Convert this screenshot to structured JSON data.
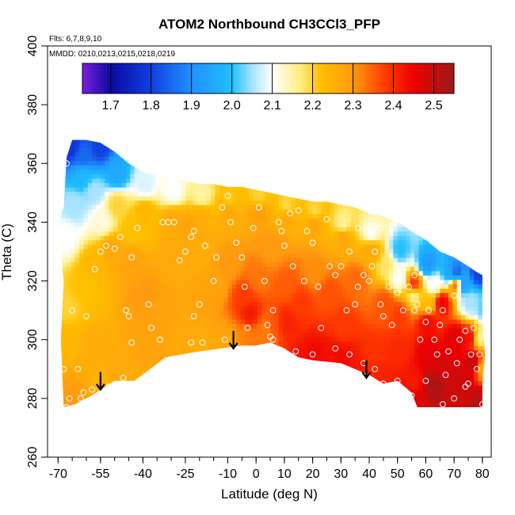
{
  "chart_data": {
    "type": "heatmap",
    "title": "ATOM2 Northbound CH3CCl3_PFP",
    "flights_note": "Flts: 6,7,8,9,10",
    "dates_note": "MMDD: 0210,0213,0215,0218,0219",
    "xlabel": "Latitude (deg N)",
    "ylabel": "Theta (C)",
    "xlim": [
      -70,
      80
    ],
    "ylim": [
      260,
      400
    ],
    "x_ticks": [
      -70,
      -55,
      -40,
      -25,
      -10,
      0,
      10,
      20,
      30,
      40,
      50,
      60,
      70,
      80
    ],
    "x_tick_labels": [
      "-70",
      "-55",
      "-40",
      "-25",
      "-10",
      "0",
      "10",
      "20",
      "30",
      "40",
      "50",
      "60",
      "70",
      "80"
    ],
    "x_minor_step": 5,
    "y_ticks": [
      260,
      280,
      300,
      320,
      340,
      360,
      380,
      400
    ],
    "y_tick_labels": [
      "260",
      "280",
      "300",
      "320",
      "340",
      "360",
      "380",
      "400"
    ],
    "colorbar": {
      "ticks": [
        1.7,
        1.8,
        1.9,
        2.0,
        2.1,
        2.2,
        2.3,
        2.4,
        2.5
      ],
      "tick_labels": [
        "1.7",
        "1.8",
        "1.9",
        "2.0",
        "2.1",
        "2.2",
        "2.3",
        "2.4",
        "2.5"
      ],
      "range": [
        1.63,
        2.55
      ],
      "stops": [
        {
          "v": 1.63,
          "c": "#7b1fe0"
        },
        {
          "v": 1.7,
          "c": "#0a0aa0"
        },
        {
          "v": 1.8,
          "c": "#1040e0"
        },
        {
          "v": 1.9,
          "c": "#2090ff"
        },
        {
          "v": 2.0,
          "c": "#20c0ff"
        },
        {
          "v": 2.05,
          "c": "#a8e4ff"
        },
        {
          "v": 2.1,
          "c": "#ffffff"
        },
        {
          "v": 2.17,
          "c": "#ffee80"
        },
        {
          "v": 2.22,
          "c": "#ffc000"
        },
        {
          "v": 2.3,
          "c": "#ff9a10"
        },
        {
          "v": 2.38,
          "c": "#ff3a00"
        },
        {
          "v": 2.45,
          "c": "#ee0000"
        },
        {
          "v": 2.55,
          "c": "#9b1a1a"
        }
      ]
    },
    "surface": [
      [
        [
          -68,
          300,
          2.24
        ],
        [
          -66,
          278,
          2.3
        ],
        [
          -62,
          277,
          2.28
        ],
        [
          -58,
          296,
          2.26
        ],
        [
          -55,
          285,
          2.25
        ],
        [
          -50,
          286,
          2.27
        ],
        [
          -45,
          285,
          2.26
        ],
        [
          -40,
          297,
          2.28
        ],
        [
          -35,
          293,
          2.28
        ],
        [
          -28,
          298,
          2.27
        ],
        [
          -20,
          296,
          2.26
        ],
        [
          -15,
          297,
          2.27
        ],
        [
          -10,
          299,
          2.28
        ],
        [
          -5,
          301,
          2.32
        ],
        [
          0,
          300,
          2.33
        ],
        [
          3,
          303,
          2.32
        ],
        [
          5,
          304,
          2.36
        ],
        [
          10,
          305,
          2.41
        ],
        [
          15,
          292,
          2.43
        ],
        [
          20,
          294,
          2.44
        ],
        [
          25,
          293,
          2.43
        ],
        [
          30,
          292,
          2.44
        ],
        [
          35,
          290,
          2.42
        ],
        [
          40,
          295,
          2.39
        ],
        [
          45,
          285,
          2.41
        ],
        [
          50,
          297,
          2.4
        ],
        [
          55,
          285,
          2.42
        ],
        [
          60,
          295,
          2.46
        ],
        [
          65,
          290,
          2.48
        ],
        [
          70,
          300,
          2.47
        ],
        [
          72,
          284,
          2.49
        ],
        [
          76,
          292,
          2.5
        ],
        [
          79,
          278,
          2.52
        ],
        [
          62,
          284,
          2.53
        ],
        [
          55,
          278,
          2.47
        ]
      ],
      [
        [
          -68,
          310,
          2.2
        ],
        [
          -62,
          318,
          2.22
        ],
        [
          -58,
          325,
          2.24
        ],
        [
          -52,
          330,
          2.27
        ],
        [
          -45,
          325,
          2.28
        ],
        [
          -40,
          315,
          2.3
        ],
        [
          -35,
          308,
          2.28
        ],
        [
          -30,
          325,
          2.27
        ],
        [
          -25,
          338,
          2.28
        ],
        [
          -20,
          330,
          2.26
        ],
        [
          -15,
          318,
          2.28
        ],
        [
          -10,
          325,
          2.3
        ],
        [
          -5,
          314,
          2.38
        ],
        [
          -3,
          308,
          2.42
        ],
        [
          0,
          320,
          2.33
        ],
        [
          5,
          330,
          2.3
        ],
        [
          10,
          318,
          2.35
        ],
        [
          15,
          312,
          2.38
        ],
        [
          20,
          322,
          2.31
        ],
        [
          25,
          315,
          2.36
        ],
        [
          30,
          305,
          2.38
        ],
        [
          35,
          320,
          2.34
        ],
        [
          40,
          330,
          2.3
        ],
        [
          45,
          312,
          2.36
        ],
        [
          50,
          308,
          2.38
        ],
        [
          55,
          318,
          2.4
        ],
        [
          60,
          305,
          2.44
        ],
        [
          65,
          312,
          2.45
        ],
        [
          70,
          318,
          2.38
        ],
        [
          75,
          300,
          2.44
        ]
      ],
      [
        [
          -68,
          335,
          2.1
        ],
        [
          -65,
          345,
          2.05
        ],
        [
          -62,
          355,
          1.98
        ],
        [
          -58,
          350,
          2.05
        ],
        [
          -55,
          340,
          2.12
        ],
        [
          -50,
          345,
          2.2
        ],
        [
          -45,
          338,
          2.22
        ],
        [
          -40,
          343,
          2.24
        ],
        [
          -30,
          340,
          2.27
        ],
        [
          -20,
          342,
          2.26
        ],
        [
          -10,
          344,
          2.28
        ],
        [
          0,
          343,
          2.29
        ],
        [
          10,
          342,
          2.28
        ],
        [
          20,
          340,
          2.29
        ],
        [
          30,
          335,
          2.28
        ],
        [
          40,
          330,
          2.24
        ],
        [
          45,
          325,
          2.18
        ],
        [
          50,
          320,
          2.1
        ],
        [
          55,
          315,
          2.15
        ],
        [
          60,
          312,
          2.22
        ],
        [
          62,
          318,
          2.1
        ],
        [
          68,
          322,
          1.95
        ],
        [
          72,
          318,
          1.9
        ],
        [
          75,
          312,
          2.05
        ],
        [
          78,
          300,
          2.15
        ],
        [
          80,
          290,
          2.25
        ]
      ],
      [
        [
          -66,
          365,
          1.78
        ],
        [
          -62,
          362,
          1.85
        ],
        [
          -56,
          365,
          1.8
        ],
        [
          -50,
          356,
          1.95
        ],
        [
          -40,
          352,
          2.08
        ],
        [
          -30,
          350,
          2.1
        ],
        [
          -20,
          348,
          2.15
        ],
        [
          -10,
          346,
          2.2
        ],
        [
          0,
          348,
          2.2
        ],
        [
          10,
          344,
          2.18
        ],
        [
          20,
          342,
          2.18
        ],
        [
          30,
          338,
          2.15
        ],
        [
          40,
          335,
          2.1
        ],
        [
          50,
          330,
          2.0
        ],
        [
          60,
          325,
          1.92
        ],
        [
          70,
          322,
          1.82
        ],
        [
          78,
          322,
          1.8
        ],
        [
          80,
          310,
          2.02
        ]
      ]
    ],
    "observations": [
      [
        -69,
        335
      ],
      [
        -67,
        360
      ],
      [
        -68,
        290
      ],
      [
        -67,
        277
      ],
      [
        -63,
        290
      ],
      [
        -61,
        282
      ],
      [
        -65,
        310
      ],
      [
        -60,
        308
      ],
      [
        -57,
        324
      ],
      [
        -55,
        330
      ],
      [
        -53,
        332
      ],
      [
        -50,
        331
      ],
      [
        -48,
        335
      ],
      [
        -46,
        310
      ],
      [
        -45,
        308
      ],
      [
        -44,
        328
      ],
      [
        -42,
        338
      ],
      [
        -38,
        312
      ],
      [
        -37,
        304
      ],
      [
        -33,
        340
      ],
      [
        -31,
        340
      ],
      [
        -29,
        340
      ],
      [
        -27,
        327
      ],
      [
        -25,
        330
      ],
      [
        -23,
        335
      ],
      [
        -22,
        337
      ],
      [
        -22,
        308
      ],
      [
        -20,
        312
      ],
      [
        -19,
        299
      ],
      [
        -18,
        332
      ],
      [
        -15,
        320
      ],
      [
        -14,
        328
      ],
      [
        -12,
        345
      ],
      [
        -10,
        349
      ],
      [
        -9,
        340
      ],
      [
        -7,
        333
      ],
      [
        -5,
        328
      ],
      [
        -4,
        318
      ],
      [
        -3,
        304
      ],
      [
        -1,
        338
      ],
      [
        1,
        345
      ],
      [
        3,
        320
      ],
      [
        4,
        305
      ],
      [
        5,
        301
      ],
      [
        6,
        310
      ],
      [
        8,
        340
      ],
      [
        9,
        337
      ],
      [
        10,
        332
      ],
      [
        12,
        343
      ],
      [
        13,
        325
      ],
      [
        15,
        344
      ],
      [
        17,
        320
      ],
      [
        18,
        337
      ],
      [
        20,
        333
      ],
      [
        22,
        318
      ],
      [
        23,
        304
      ],
      [
        25,
        341
      ],
      [
        26,
        325
      ],
      [
        28,
        322
      ],
      [
        30,
        325
      ],
      [
        32,
        310
      ],
      [
        33,
        330
      ],
      [
        35,
        312
      ],
      [
        36,
        318
      ],
      [
        38,
        322
      ],
      [
        40,
        320
      ],
      [
        42,
        330
      ],
      [
        44,
        312
      ],
      [
        45,
        308
      ],
      [
        47,
        318
      ],
      [
        48,
        305
      ],
      [
        50,
        316
      ],
      [
        52,
        310
      ],
      [
        54,
        318
      ],
      [
        56,
        322
      ],
      [
        57,
        312
      ],
      [
        58,
        300
      ],
      [
        60,
        306
      ],
      [
        61,
        310
      ],
      [
        63,
        300
      ],
      [
        64,
        295
      ],
      [
        65,
        305
      ],
      [
        66,
        310
      ],
      [
        67,
        288
      ],
      [
        68,
        296
      ],
      [
        70,
        280
      ],
      [
        71,
        292
      ],
      [
        72,
        300
      ],
      [
        73,
        310
      ],
      [
        74,
        284
      ],
      [
        75,
        285
      ],
      [
        76,
        295
      ],
      [
        77,
        304
      ],
      [
        78,
        290
      ],
      [
        79,
        295
      ],
      [
        80,
        278
      ],
      [
        66,
        278
      ],
      [
        60,
        286
      ],
      [
        55,
        281
      ],
      [
        50,
        286
      ],
      [
        45,
        285
      ],
      [
        42,
        290
      ],
      [
        38,
        292
      ],
      [
        33,
        295
      ],
      [
        28,
        297
      ],
      [
        20,
        295
      ],
      [
        14,
        296
      ],
      [
        6,
        300
      ],
      [
        -11,
        300
      ],
      [
        -23,
        299
      ],
      [
        -34,
        300
      ],
      [
        -44,
        299
      ],
      [
        -47,
        287
      ],
      [
        -52,
        284
      ],
      [
        -58,
        283
      ],
      [
        -66,
        280
      ],
      [
        -62,
        280
      ],
      [
        36,
        338
      ],
      [
        44,
        338
      ],
      [
        41,
        325
      ],
      [
        56,
        310
      ],
      [
        70,
        315
      ],
      [
        74,
        303
      ]
    ],
    "arrows": [
      {
        "lat": -55,
        "theta_top": 289,
        "theta_bottom": 283
      },
      {
        "lat": -8,
        "theta_top": 303,
        "theta_bottom": 297
      },
      {
        "lat": 39,
        "theta_top": 293,
        "theta_bottom": 287
      }
    ],
    "data_envelope": {
      "lower": [
        [
          -68,
          277
        ],
        [
          -64,
          278
        ],
        [
          -58,
          281
        ],
        [
          -50,
          286
        ],
        [
          -43,
          286
        ],
        [
          -32,
          294
        ],
        [
          -20,
          296
        ],
        [
          -5,
          298
        ],
        [
          0,
          298
        ],
        [
          5,
          299
        ],
        [
          10,
          297
        ],
        [
          15,
          294
        ],
        [
          20,
          293
        ],
        [
          30,
          292
        ],
        [
          40,
          288
        ],
        [
          45,
          285
        ],
        [
          50,
          286
        ],
        [
          55,
          282
        ],
        [
          57,
          277
        ],
        [
          80,
          277
        ]
      ],
      "upper": [
        [
          80,
          278
        ],
        [
          80,
          285
        ],
        [
          81,
          295
        ],
        [
          80,
          305
        ],
        [
          80,
          315
        ],
        [
          80,
          322
        ],
        [
          78,
          323
        ],
        [
          75,
          325
        ],
        [
          70,
          328
        ],
        [
          65,
          330
        ],
        [
          60,
          334
        ],
        [
          55,
          337
        ],
        [
          50,
          340
        ],
        [
          45,
          342
        ],
        [
          40,
          343
        ],
        [
          35,
          345
        ],
        [
          30,
          346
        ],
        [
          25,
          347
        ],
        [
          20,
          347
        ],
        [
          15,
          348
        ],
        [
          10,
          349
        ],
        [
          5,
          350
        ],
        [
          0,
          351
        ],
        [
          -5,
          352
        ],
        [
          -10,
          352
        ],
        [
          -15,
          353
        ],
        [
          -20,
          353
        ],
        [
          -25,
          354
        ],
        [
          -30,
          355
        ],
        [
          -35,
          356
        ],
        [
          -40,
          357
        ],
        [
          -45,
          360
        ],
        [
          -50,
          364
        ],
        [
          -55,
          367
        ],
        [
          -60,
          368
        ],
        [
          -65,
          368
        ],
        [
          -67,
          362
        ],
        [
          -68,
          345
        ],
        [
          -70,
          340
        ],
        [
          -68,
          320
        ],
        [
          -69,
          300
        ],
        [
          -68,
          277
        ]
      ]
    }
  }
}
